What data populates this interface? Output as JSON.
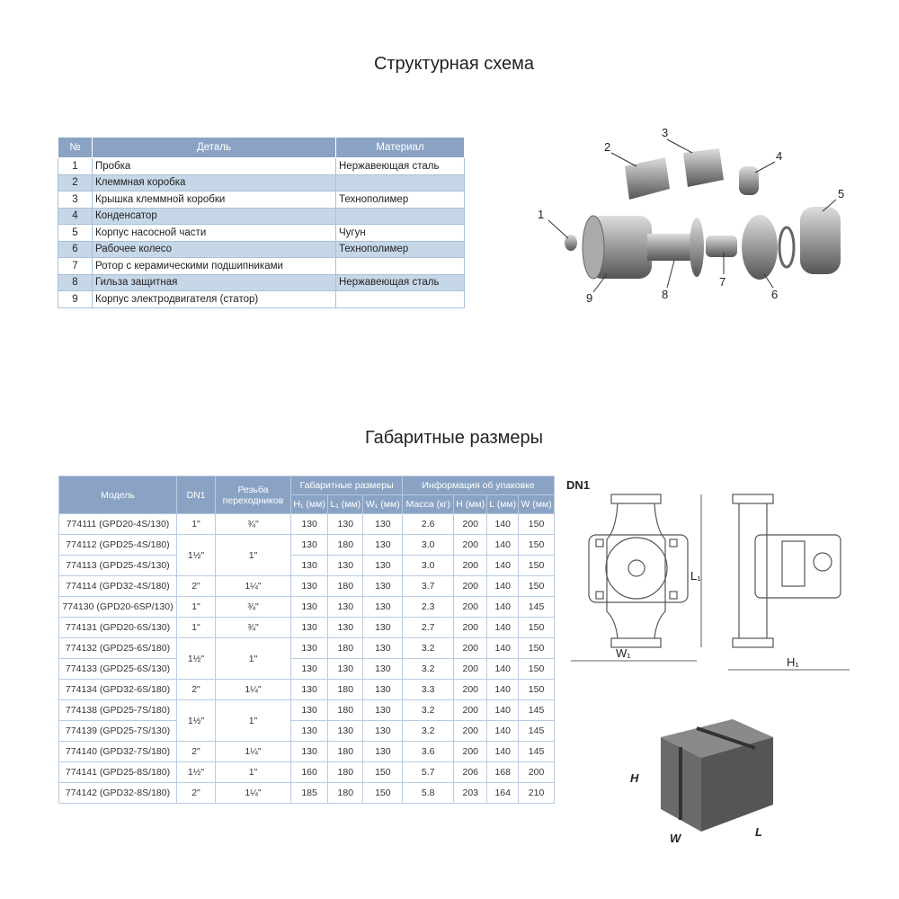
{
  "section1_title": "Структурная схема",
  "parts_table": {
    "headers": [
      "№",
      "Деталь",
      "Материал"
    ],
    "rows": [
      [
        "1",
        "Пробка",
        "Нержавеющая сталь"
      ],
      [
        "2",
        "Клеммная коробка",
        ""
      ],
      [
        "3",
        "Крышка клеммной коробки",
        "Технополимер"
      ],
      [
        "4",
        "Конденсатор",
        ""
      ],
      [
        "5",
        "Корпус насосной части",
        "Чугун"
      ],
      [
        "6",
        "Рабочее колесо",
        "Технополимер"
      ],
      [
        "7",
        "Ротор с керамическими подшипниками",
        ""
      ],
      [
        "8",
        "Гильза защитная",
        "Нержавеющая сталь"
      ],
      [
        "9",
        "Корпус электродвигателя (статор)",
        ""
      ]
    ]
  },
  "exploded_labels": [
    "1",
    "2",
    "3",
    "4",
    "5",
    "6",
    "7",
    "8",
    "9"
  ],
  "section2_title": "Габаритные размеры",
  "dims_table": {
    "headers": {
      "model": "Модель",
      "dn1": "DN1",
      "thread": "Резьба переходников",
      "dims_group": "Габаритные размеры",
      "pack_group": "Информация об упаковке",
      "h1": "H₁ (мм)",
      "l1": "L₁ (мм)",
      "w1": "W₁ (мм)",
      "mass": "Масса (кг)",
      "h": "H (мм)",
      "l": "L (мм)",
      "w": "W (мм)"
    },
    "groups": [
      {
        "dn1": "1\"",
        "thread": "¾\"",
        "rows": [
          [
            "774111 (GPD20-4S/130)",
            "130",
            "130",
            "130",
            "2.6",
            "200",
            "140",
            "150"
          ]
        ]
      },
      {
        "dn1": "1½\"",
        "thread": "1\"",
        "rows": [
          [
            "774112 (GPD25-4S/180)",
            "130",
            "180",
            "130",
            "3.0",
            "200",
            "140",
            "150"
          ],
          [
            "774113 (GPD25-4S/130)",
            "130",
            "130",
            "130",
            "3.0",
            "200",
            "140",
            "150"
          ]
        ]
      },
      {
        "dn1": "2\"",
        "thread": "1¼\"",
        "rows": [
          [
            "774114 (GPD32-4S/180)",
            "130",
            "180",
            "130",
            "3.7",
            "200",
            "140",
            "150"
          ]
        ]
      },
      {
        "dn1": "1\"",
        "thread": "¾\"",
        "rows": [
          [
            "774130 (GPD20-6SP/130)",
            "130",
            "130",
            "130",
            "2.3",
            "200",
            "140",
            "145"
          ]
        ]
      },
      {
        "dn1": "1\"",
        "thread": "¾\"",
        "rows": [
          [
            "774131 (GPD20-6S/130)",
            "130",
            "130",
            "130",
            "2.7",
            "200",
            "140",
            "150"
          ]
        ]
      },
      {
        "dn1": "1½\"",
        "thread": "1\"",
        "rows": [
          [
            "774132 (GPD25-6S/180)",
            "130",
            "180",
            "130",
            "3.2",
            "200",
            "140",
            "150"
          ],
          [
            "774133 (GPD25-6S/130)",
            "130",
            "130",
            "130",
            "3.2",
            "200",
            "140",
            "150"
          ]
        ]
      },
      {
        "dn1": "2\"",
        "thread": "1¼\"",
        "rows": [
          [
            "774134 (GPD32-6S/180)",
            "130",
            "180",
            "130",
            "3.3",
            "200",
            "140",
            "150"
          ]
        ]
      },
      {
        "dn1": "1½\"",
        "thread": "1\"",
        "rows": [
          [
            "774138 (GPD25-7S/180)",
            "130",
            "180",
            "130",
            "3.2",
            "200",
            "140",
            "145"
          ],
          [
            "774139 (GPD25-7S/130)",
            "130",
            "130",
            "130",
            "3.2",
            "200",
            "140",
            "145"
          ]
        ]
      },
      {
        "dn1": "2\"",
        "thread": "1¼\"",
        "rows": [
          [
            "774140 (GPD32-7S/180)",
            "130",
            "180",
            "130",
            "3.6",
            "200",
            "140",
            "145"
          ]
        ]
      },
      {
        "dn1": "1½\"",
        "thread": "1\"",
        "rows": [
          [
            "774141 (GPD25-8S/180)",
            "160",
            "180",
            "150",
            "5.7",
            "206",
            "168",
            "200"
          ]
        ]
      },
      {
        "dn1": "2\"",
        "thread": "1¼\"",
        "rows": [
          [
            "774142 (GPD32-8S/180)",
            "185",
            "180",
            "150",
            "5.8",
            "203",
            "164",
            "210"
          ]
        ]
      }
    ]
  },
  "drawing_labels": {
    "dn1": "DN1",
    "l1": "L₁",
    "w1": "W₁",
    "h1": "H₁"
  },
  "box_labels": {
    "h": "H",
    "w": "W",
    "l": "L"
  },
  "colors": {
    "header": "#8aa3c4",
    "row_alt": "#c6d8e8",
    "border": "#b8cbe0"
  }
}
